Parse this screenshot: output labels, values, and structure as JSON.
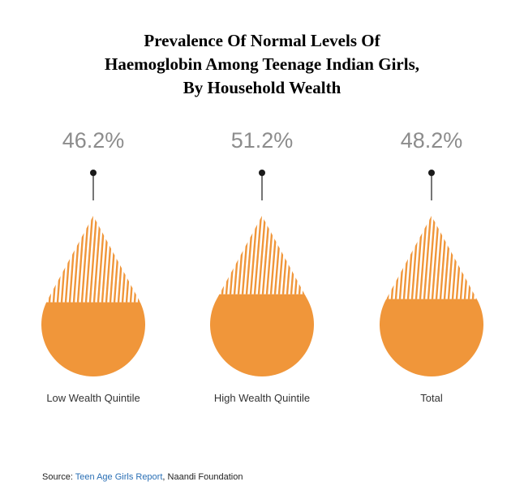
{
  "title_lines": [
    "Prevalence Of Normal Levels Of",
    "Haemoglobin Among Teenage Indian Girls,",
    "By Household Wealth"
  ],
  "chart_data": {
    "type": "bar",
    "categories": [
      "Low Wealth Quintile",
      "High Wealth Quintile",
      "Total"
    ],
    "values": [
      46.2,
      51.2,
      48.2
    ],
    "value_labels": [
      "46.2%",
      "51.2%",
      "48.2%"
    ],
    "ylim": [
      0,
      100
    ],
    "colors": {
      "fill": "#f0963a",
      "hatch": "#f0963a",
      "pin": "#1a1a1a",
      "value_text": "#8c8c8c",
      "label_text": "#333333"
    }
  },
  "source": {
    "prefix": "Source: ",
    "link_text": "Teen Age Girls Report",
    "suffix": ", Naandi Foundation"
  }
}
